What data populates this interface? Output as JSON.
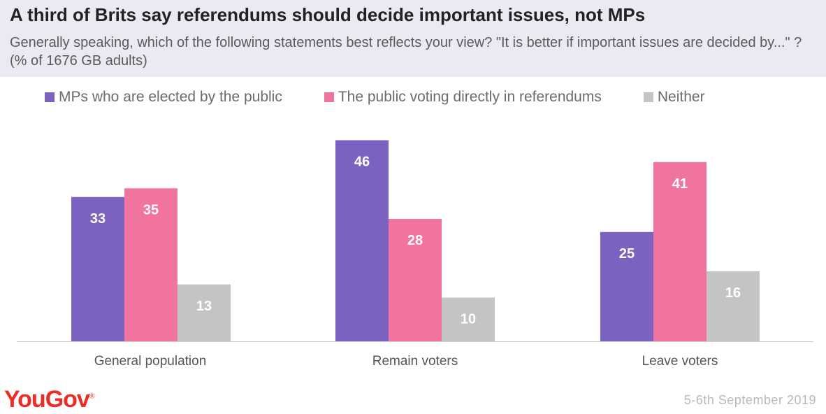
{
  "header": {
    "title": "A third of Brits say referendums should decide important issues, not MPs",
    "subtitle": "Generally speaking, which of the following statements best reflects your view? \"It is better if important issues are decided by...\" ? (% of 1676 GB adults)"
  },
  "footer": {
    "logo": "YouGov",
    "date": "5-6th September 2019"
  },
  "colors": {
    "series_1": "#7b62c0",
    "series_2": "#f173a0",
    "series_3": "#c4c4c4",
    "header_bg": "#ece9f3"
  },
  "chart_data": {
    "type": "bar",
    "categories": [
      "General population",
      "Remain voters",
      "Leave voters"
    ],
    "series": [
      {
        "name": "MPs who are elected by the public",
        "values": [
          33,
          46,
          25
        ],
        "color": "#7b62c0"
      },
      {
        "name": "The public voting directly in referendums",
        "values": [
          35,
          28,
          41
        ],
        "color": "#f173a0"
      },
      {
        "name": "Neither",
        "values": [
          13,
          10,
          16
        ],
        "color": "#c4c4c4"
      }
    ],
    "ylim": [
      0,
      50
    ],
    "grid": false,
    "legend": "top-left"
  }
}
